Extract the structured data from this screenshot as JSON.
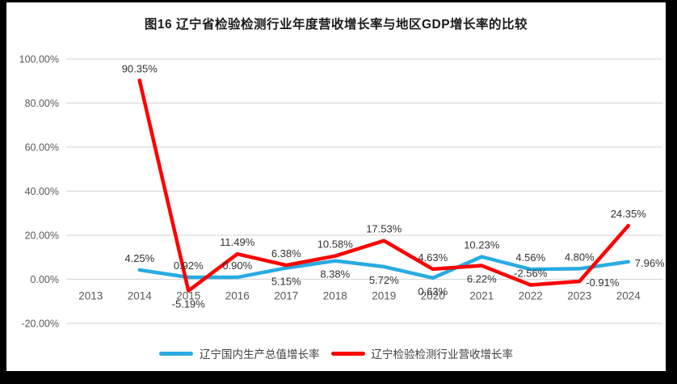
{
  "title": "图16  辽宁省检验检测行业年度营收增长率与地区GDP增长率的比较",
  "chart_data": {
    "type": "line",
    "title": "图16  辽宁省检验检测行业年度营收增长率与地区GDP增长率的比较",
    "categories": [
      "2013",
      "2014",
      "2015",
      "2016",
      "2017",
      "2018",
      "2019",
      "2020",
      "2021",
      "2022",
      "2023",
      "2024"
    ],
    "y_ticks": [
      "100.00%",
      "80.00%",
      "60.00%",
      "40.00%",
      "20.00%",
      "0.00%",
      "-20.00%"
    ],
    "ylim": [
      -20,
      100
    ],
    "grid": "horizontal",
    "gridline_color": "#D9D9D9",
    "legend_position": "bottom",
    "series": [
      {
        "name": "辽宁国内生产总值增长率",
        "color": "#29ABE2",
        "values": [
          null,
          4.25,
          0.92,
          0.9,
          5.15,
          8.38,
          5.72,
          0.63,
          10.23,
          4.56,
          4.8,
          7.96
        ],
        "labels": [
          "",
          "4.25%",
          "0.92%",
          "0.90%",
          "5.15%",
          "8.38%",
          "5.72%",
          "0.63%",
          "10.23%",
          "4.56%",
          "4.80%",
          "7.96%"
        ],
        "label_pos": [
          "",
          "above",
          "above",
          "above",
          "below",
          "below",
          "below",
          "below",
          "above",
          "above",
          "above",
          "right"
        ]
      },
      {
        "name": "辽宁检验检测行业营收增长率",
        "color": "#FE0000",
        "values": [
          null,
          90.35,
          -5.19,
          11.49,
          6.38,
          10.58,
          17.53,
          4.63,
          6.22,
          -2.56,
          -0.91,
          24.35
        ],
        "labels": [
          "",
          "90.35%",
          "-5.19%",
          "11.49%",
          "6.38%",
          "10.58%",
          "17.53%",
          "4.63%",
          "6.22%",
          "-2.56%",
          "-0.91%",
          "24.35%"
        ],
        "label_pos": [
          "",
          "above",
          "below",
          "above",
          "above",
          "above",
          "above",
          "above",
          "below",
          "above",
          "right",
          "above"
        ]
      }
    ]
  }
}
